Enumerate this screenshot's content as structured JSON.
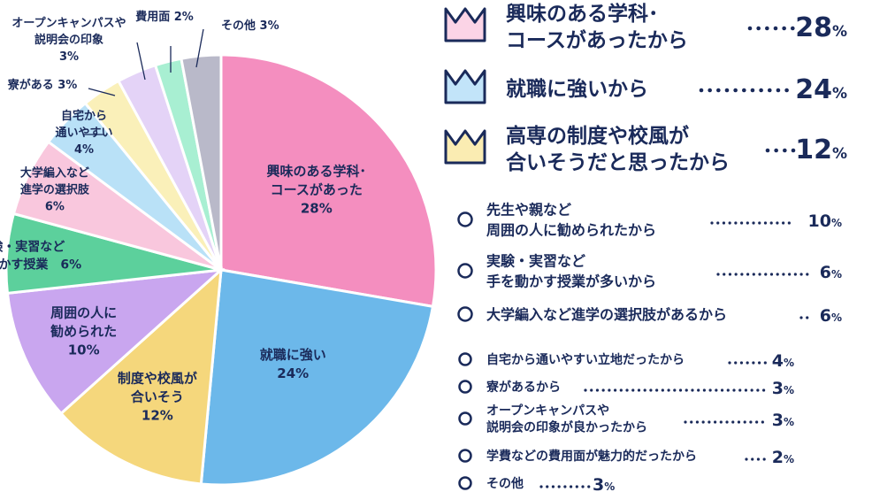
{
  "chart_data": {
    "type": "pie",
    "slices": [
      {
        "name": "興味のある学科・コースがあった",
        "lines": [
          "興味のある学科･",
          "コースがあった"
        ],
        "value": 28,
        "value_label": "28%",
        "color": "#f48ebf"
      },
      {
        "name": "就職に強い",
        "lines": [
          "就職に強い"
        ],
        "value": 24,
        "value_label": "24%",
        "color": "#6cb8ea"
      },
      {
        "name": "制度や校風が合いそう",
        "lines": [
          "制度や校風が",
          "合いそう"
        ],
        "value": 12,
        "value_label": "12%",
        "color": "#f5d77c"
      },
      {
        "name": "周囲の人に勧められた",
        "lines": [
          "周囲の人に",
          "勧められた"
        ],
        "value": 10,
        "value_label": "10%",
        "color": "#c9a6ef"
      },
      {
        "name": "実験・実習など手を動かす授業",
        "lines": [
          "実験・実習など",
          "手を動かす授業"
        ],
        "value": 6,
        "value_label": "6%",
        "color": "#5cd09c"
      },
      {
        "name": "大学編入など進学の選択肢",
        "lines": [
          "大学編入など",
          "進学の選択肢"
        ],
        "value": 6,
        "value_label": "6%",
        "color": "#f9c7dd"
      },
      {
        "name": "自宅から通いやすい",
        "lines": [
          "自宅から",
          "通いやすい"
        ],
        "value": 4,
        "value_label": "4%",
        "color": "#b9e1f7"
      },
      {
        "name": "寮がある",
        "lines": [
          "寮がある"
        ],
        "value": 3,
        "value_label": "3%",
        "color": "#faf0b9"
      },
      {
        "name": "オープンキャンパスや説明会の印象",
        "lines": [
          "オープンキャンパスや",
          "説明会の印象"
        ],
        "value": 3,
        "value_label": "3%",
        "color": "#e4d3f7"
      },
      {
        "name": "費用面",
        "lines": [
          "費用面"
        ],
        "value": 2,
        "value_label": "2%",
        "color": "#a8efd2"
      },
      {
        "name": "その他",
        "lines": [
          "その他"
        ],
        "value": 3,
        "value_label": "3%",
        "color": "#b9b9c9"
      }
    ]
  },
  "ranking": [
    {
      "rank": 1,
      "lines": [
        "興味のある学科･",
        "コースがあったから"
      ],
      "value": "28",
      "unit": "%",
      "crown_color": "#fbd4e6"
    },
    {
      "rank": 2,
      "lines": [
        "就職に強いから"
      ],
      "value": "24",
      "unit": "%",
      "crown_color": "#c2e4f9"
    },
    {
      "rank": 3,
      "lines": [
        "高専の制度や校風が",
        "合いそうだと思ったから"
      ],
      "value": "12",
      "unit": "%",
      "crown_color": "#faecb2"
    }
  ],
  "others": [
    {
      "lines": [
        "先生や親など",
        "周囲の人に勧められたから"
      ],
      "value": "10",
      "unit": "%"
    },
    {
      "lines": [
        "実験・実習など",
        "手を動かす授業が多いから"
      ],
      "value": "6",
      "unit": "%"
    },
    {
      "lines": [
        "大学編入など進学の選択肢があるから"
      ],
      "value": "6",
      "unit": "%"
    },
    {
      "lines": [
        "自宅から通いやすい立地だったから"
      ],
      "value": "4",
      "unit": "%"
    },
    {
      "lines": [
        "寮があるから"
      ],
      "value": "3",
      "unit": "%"
    },
    {
      "lines": [
        "オープンキャンパスや",
        "説明会の印象が良かったから"
      ],
      "value": "3",
      "unit": "%"
    },
    {
      "lines": [
        "学費などの費用面が魅力的だったから"
      ],
      "value": "2",
      "unit": "%"
    },
    {
      "lines": [
        "その他"
      ],
      "value": "3",
      "unit": "%"
    }
  ],
  "colors": {
    "text": "#1a2a5a",
    "outline": "#1a2a5a"
  }
}
